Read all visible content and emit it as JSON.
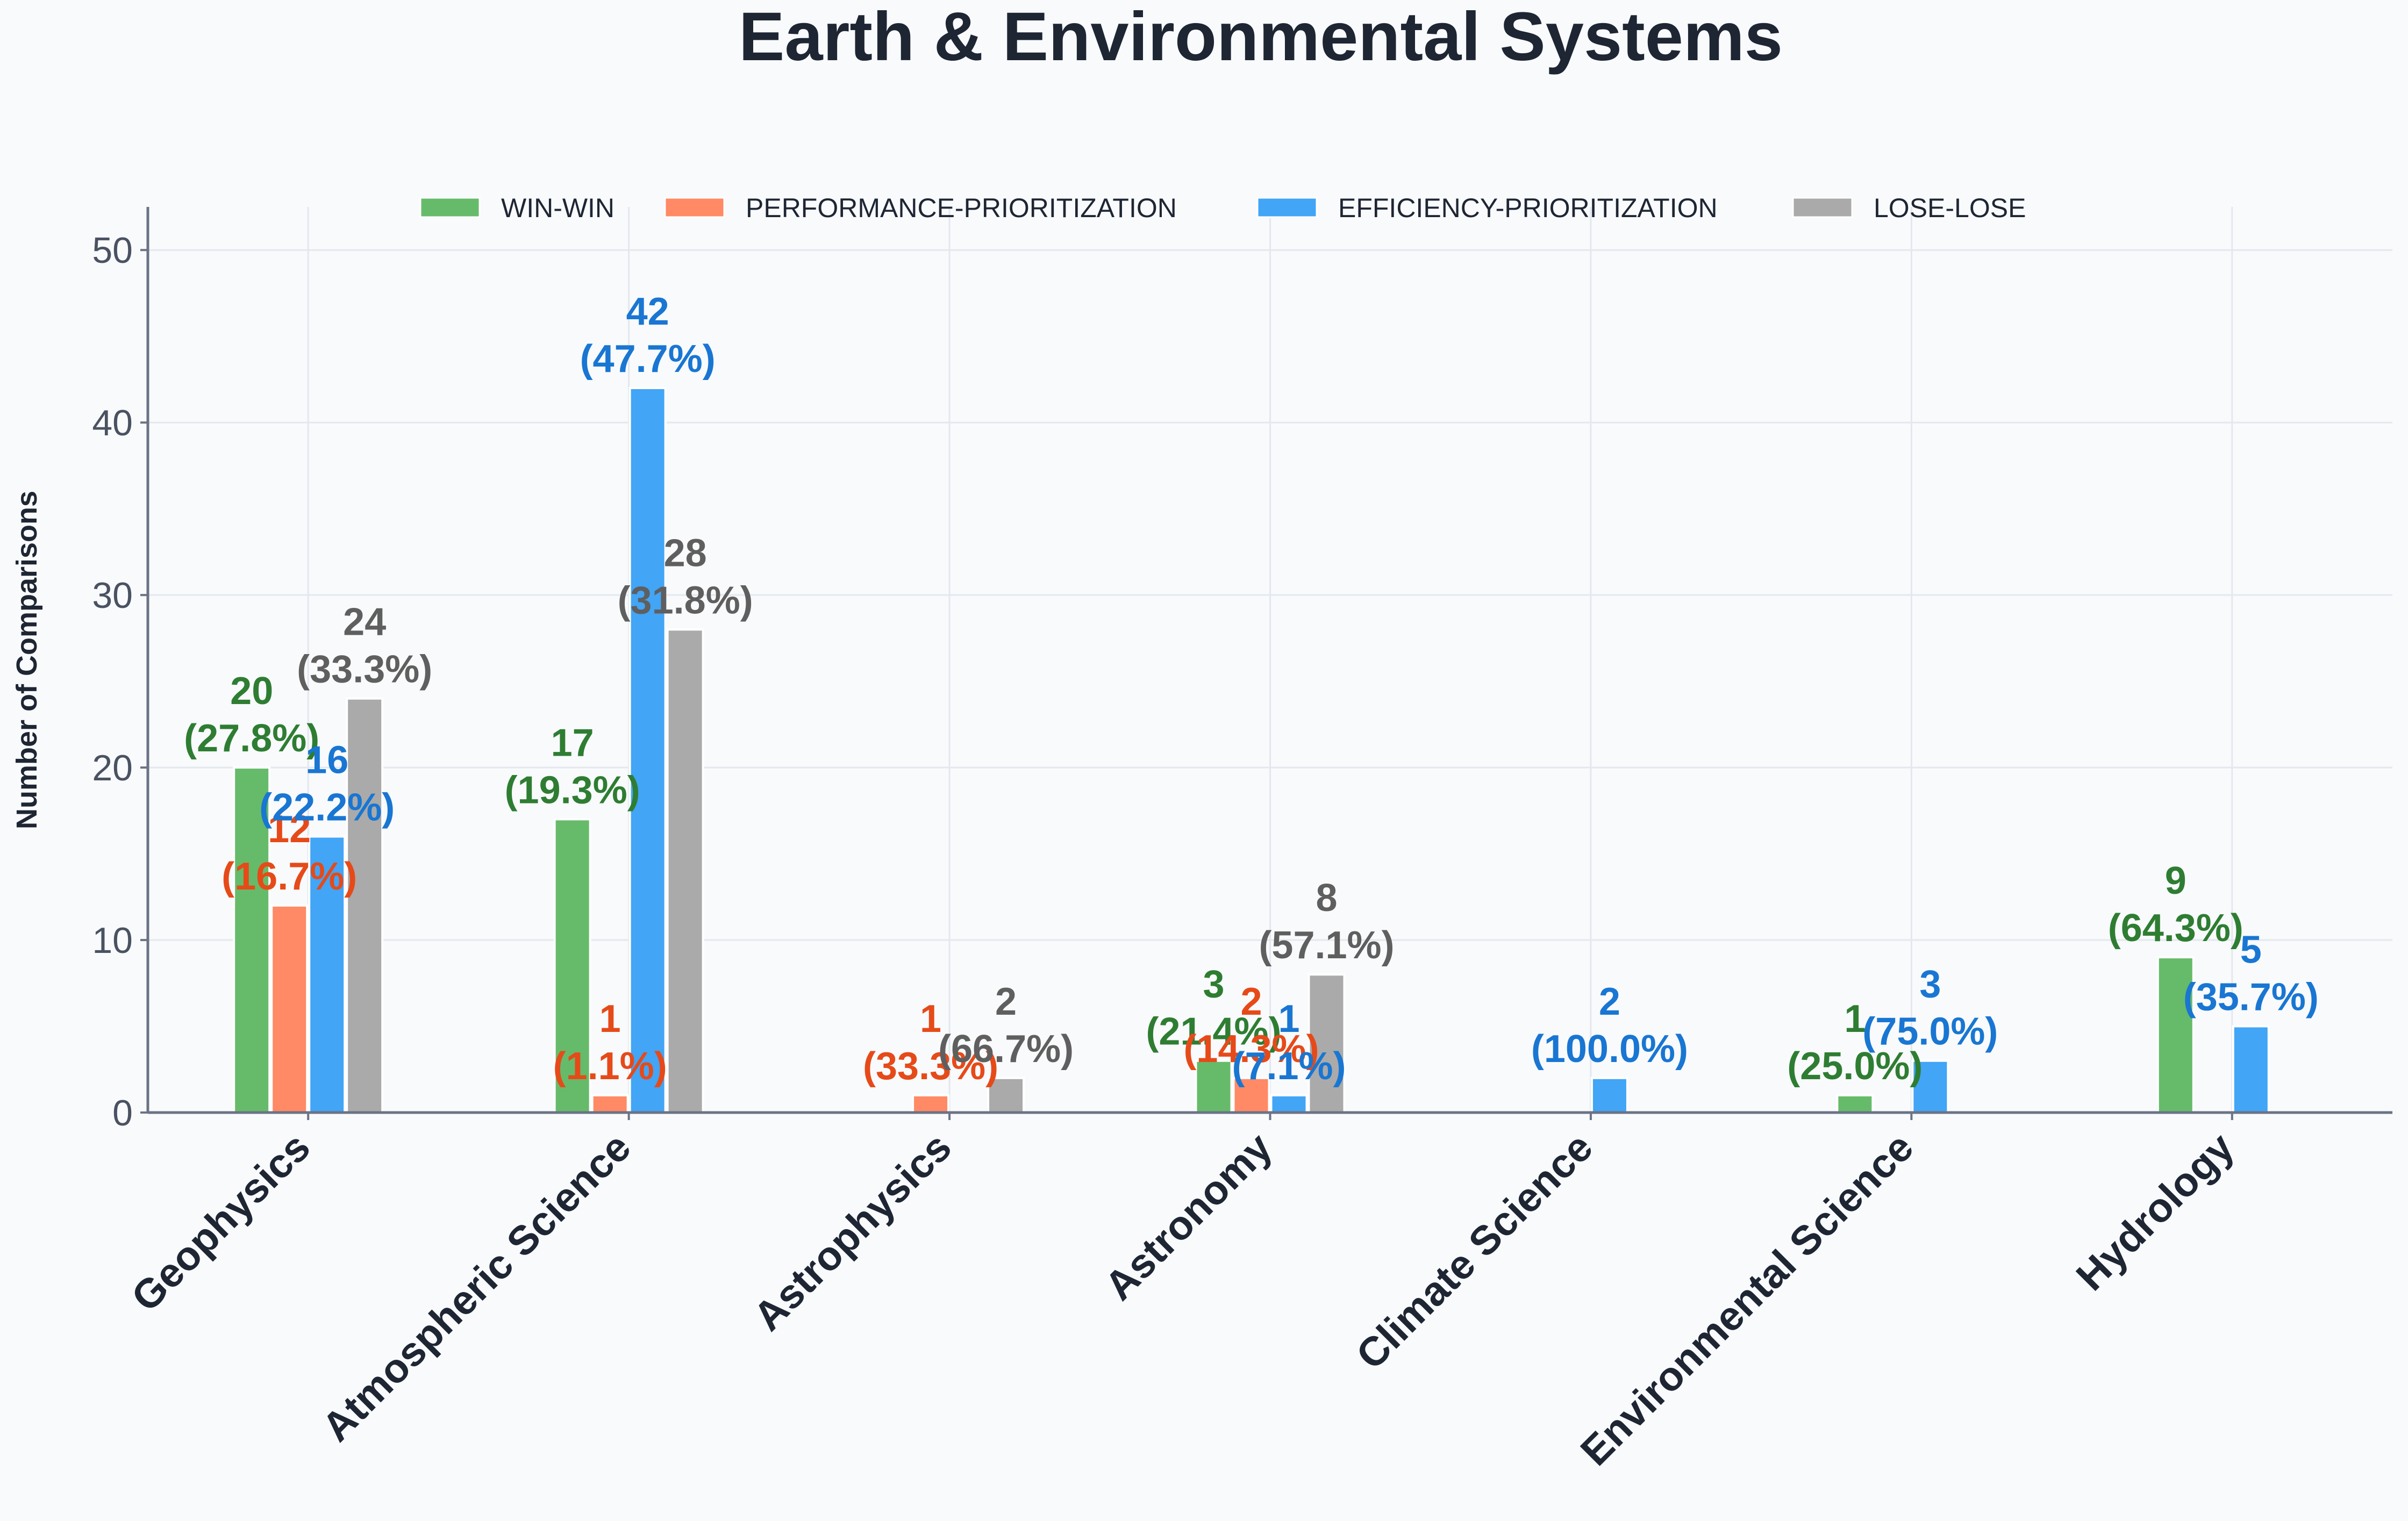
{
  "chart_data": {
    "type": "bar",
    "title": "Earth & Environmental Systems",
    "ylabel": "Number of Comparisons",
    "xlabel": "",
    "ylim": [
      0,
      52.5
    ],
    "yticks": [
      "0",
      "10",
      "20",
      "30",
      "40",
      "50"
    ],
    "grid": true,
    "legend_position": "top-center",
    "categories": [
      "Geophysics",
      "Atmospheric Science",
      "Astrophysics",
      "Astronomy",
      "Climate Science",
      "Environmental Science",
      "Hydrology"
    ],
    "series": [
      {
        "name": "WIN-WIN",
        "color": "#66bb6a",
        "label_color": "#2e7d32",
        "values": [
          20,
          17,
          0,
          3,
          0,
          1,
          9
        ],
        "labels": [
          "20\n(27.8%)",
          "17\n(19.3%)",
          "",
          "3\n(21.4%)",
          "",
          "1\n(25.0%)",
          "9\n(64.3%)"
        ]
      },
      {
        "name": "PERFORMANCE-PRIORITIZATION",
        "color": "#ff8a65",
        "label_color": "#e64a19",
        "values": [
          12,
          1,
          1,
          2,
          0,
          0,
          0
        ],
        "labels": [
          "12\n(16.7%)",
          "1\n(1.1%)",
          "1\n(33.3%)",
          "2\n(14.3%)",
          "",
          "",
          ""
        ]
      },
      {
        "name": "EFFICIENCY-PRIORITIZATION",
        "color": "#42a5f5",
        "label_color": "#1976d2",
        "values": [
          16,
          42,
          0,
          1,
          2,
          3,
          5
        ],
        "labels": [
          "16\n(22.2%)",
          "42\n(47.7%)",
          "",
          "1\n(7.1%)",
          "2\n(100.0%)",
          "3\n(75.0%)",
          "5\n(35.7%)"
        ]
      },
      {
        "name": "LOSE-LOSE",
        "color": "#aaaaaa",
        "label_color": "#5f5f5f",
        "values": [
          24,
          28,
          2,
          8,
          0,
          0,
          0
        ],
        "labels": [
          "24\n(33.3%)",
          "28\n(31.8%)",
          "2\n(66.7%)",
          "8\n(57.1%)",
          "",
          "",
          ""
        ]
      }
    ]
  }
}
